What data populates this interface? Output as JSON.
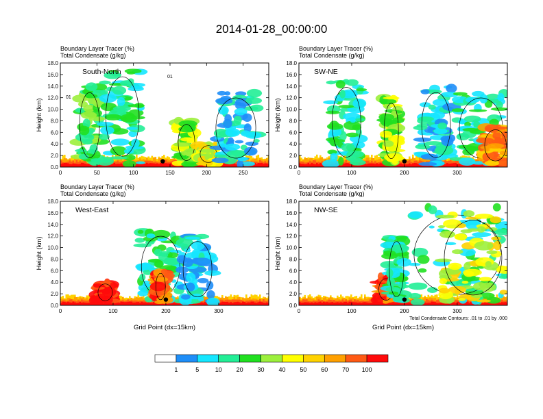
{
  "title": "2014-01-28_00:00:00",
  "colors": {
    "levels": [
      "#ffffff",
      "#1e8ef8",
      "#15e6ff",
      "#22ee96",
      "#20e020",
      "#9cf03c",
      "#ffff00",
      "#ffd200",
      "#ffa000",
      "#ff5a14",
      "#ff0a0a"
    ],
    "contour": "#000000",
    "marker": "#000000"
  },
  "chart_data": [
    {
      "type": "heatmap",
      "panel_label": "South-North",
      "header_line1": "Boundary Layer Tracer   (%)",
      "header_line2": "Total Condensate   (g/kg)",
      "ylabel": "Height (km)",
      "xlabel": "",
      "xlim": [
        0,
        285
      ],
      "ylim": [
        0,
        18
      ],
      "xticks": [
        "0",
        "50",
        "100",
        "150",
        "200",
        "250"
      ],
      "xtick_values": [
        0,
        50,
        100,
        150,
        200,
        250
      ],
      "yticks": [
        "0.0",
        "2.0",
        "4.0",
        "6.0",
        "8.0",
        "10.0",
        "12.0",
        "14.0",
        "16.0",
        "18.0"
      ],
      "marker": {
        "x": 140,
        "y": 1.0
      },
      "contour_labels": [
        "01",
        "01"
      ],
      "features": [
        {
          "x0": 0,
          "x1": 285,
          "top": 1.8,
          "level": 9
        },
        {
          "x0": 25,
          "x1": 55,
          "top": 14,
          "level": 4
        },
        {
          "x0": 60,
          "x1": 110,
          "top": 17,
          "level": 3
        },
        {
          "x0": 160,
          "x1": 185,
          "top": 8,
          "level": 5
        },
        {
          "x0": 190,
          "x1": 215,
          "top": 4,
          "level": 6
        },
        {
          "x0": 210,
          "x1": 270,
          "top": 13,
          "level": 2
        }
      ]
    },
    {
      "type": "heatmap",
      "panel_label": "SW-NE",
      "header_line1": "Boundary Layer Tracer   (%)",
      "header_line2": "Total Condensate   (g/kg)",
      "ylabel": "Height (km)",
      "xlabel": "",
      "xlim": [
        0,
        395
      ],
      "ylim": [
        0,
        18
      ],
      "xticks": [
        "0",
        "100",
        "200",
        "300"
      ],
      "xtick_values": [
        0,
        100,
        200,
        300
      ],
      "yticks": [
        "0.0",
        "2.0",
        "4.0",
        "6.0",
        "8.0",
        "10.0",
        "12.0",
        "14.0",
        "16.0",
        "18.0"
      ],
      "marker": {
        "x": 200,
        "y": 1.0
      },
      "contour_labels": [],
      "features": [
        {
          "x0": 0,
          "x1": 395,
          "top": 1.8,
          "level": 9
        },
        {
          "x0": 60,
          "x1": 120,
          "top": 15,
          "level": 3
        },
        {
          "x0": 160,
          "x1": 190,
          "top": 12,
          "level": 5
        },
        {
          "x0": 230,
          "x1": 290,
          "top": 14,
          "level": 2
        },
        {
          "x0": 300,
          "x1": 390,
          "top": 13,
          "level": 3
        },
        {
          "x0": 350,
          "x1": 395,
          "top": 7,
          "level": 8
        }
      ]
    },
    {
      "type": "heatmap",
      "panel_label": "West-East",
      "header_line1": "Boundary Layer Tracer   (%)",
      "header_line2": "Total Condensate   (g/kg)",
      "ylabel": "Height (km)",
      "xlabel": "Grid Point (dx=15km)",
      "xlim": [
        0,
        395
      ],
      "ylim": [
        0,
        18
      ],
      "xticks": [
        "0",
        "100",
        "200",
        "300"
      ],
      "xtick_values": [
        0,
        100,
        200,
        300
      ],
      "yticks": [
        "0.0",
        "2.0",
        "4.0",
        "6.0",
        "8.0",
        "10.0",
        "12.0",
        "14.0",
        "16.0",
        "18.0"
      ],
      "marker": {
        "x": 200,
        "y": 1.0
      },
      "contour_labels": [],
      "features": [
        {
          "x0": 0,
          "x1": 395,
          "top": 1.6,
          "level": 9
        },
        {
          "x0": 150,
          "x1": 230,
          "top": 13,
          "level": 3
        },
        {
          "x0": 180,
          "x1": 200,
          "top": 6,
          "level": 9
        },
        {
          "x0": 230,
          "x1": 290,
          "top": 12,
          "level": 2
        },
        {
          "x0": 70,
          "x1": 100,
          "top": 4,
          "level": 10
        }
      ]
    },
    {
      "type": "heatmap",
      "panel_label": "NW-SE",
      "header_line1": "Boundary Layer Tracer   (%)",
      "header_line2": "Total Condensate   (g/kg)",
      "ylabel": "Height (km)",
      "xlabel": "Grid Point (dx=15km)",
      "note": "Total Condensate Contours: .01 to .01 by .000",
      "xlim": [
        0,
        395
      ],
      "ylim": [
        0,
        18
      ],
      "xticks": [
        "0",
        "100",
        "200",
        "300"
      ],
      "xtick_values": [
        0,
        100,
        200,
        300
      ],
      "yticks": [
        "0.0",
        "2.0",
        "4.0",
        "6.0",
        "8.0",
        "10.0",
        "12.0",
        "14.0",
        "16.0",
        "18.0"
      ],
      "marker": {
        "x": 200,
        "y": 1.0
      },
      "contour_labels": [],
      "features": [
        {
          "x0": 0,
          "x1": 395,
          "top": 1.6,
          "level": 9
        },
        {
          "x0": 150,
          "x1": 180,
          "top": 5,
          "level": 9
        },
        {
          "x0": 170,
          "x1": 200,
          "top": 12,
          "level": 3
        },
        {
          "x0": 210,
          "x1": 390,
          "top": 17,
          "level": 3
        },
        {
          "x0": 270,
          "x1": 390,
          "top": 16,
          "level": 6
        }
      ]
    }
  ],
  "colorbar": {
    "labels": [
      "1",
      "5",
      "10",
      "20",
      "30",
      "40",
      "50",
      "60",
      "70",
      "100"
    ]
  }
}
